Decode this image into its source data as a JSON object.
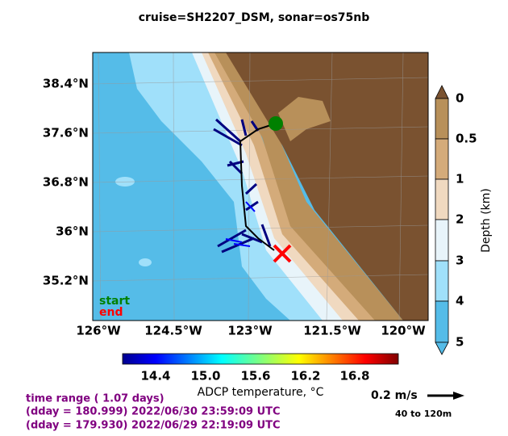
{
  "title": "cruise=SH2207_DSM,   sonar=os75nb",
  "map": {
    "lat_labels": [
      "38.4°N",
      "37.6°N",
      "36.8°N",
      "36°N",
      "35.2°N"
    ],
    "lon_labels": [
      "126°W",
      "124.5°W",
      "123°W",
      "121.5°W",
      "120°W"
    ],
    "legend": {
      "start": "start",
      "end": "end"
    }
  },
  "depth_colorbar": {
    "label": "Depth (km)",
    "ticks": [
      "0",
      "0.5",
      "1",
      "2",
      "3",
      "4",
      "5"
    ]
  },
  "temp_colorbar": {
    "label": "ADCP temperature, °C",
    "ticks": [
      "14.4",
      "15.0",
      "15.6",
      "16.2",
      "16.8"
    ]
  },
  "footer": {
    "lines": [
      "time range ( 1.07 days)",
      "(dday = 180.999) 2022/06/30 23:59:09 UTC",
      "(dday = 179.930) 2022/06/29 22:19:09 UTC"
    ]
  },
  "scale": {
    "speed": "0.2 m/s",
    "depth_range": "40 to 120m"
  }
}
